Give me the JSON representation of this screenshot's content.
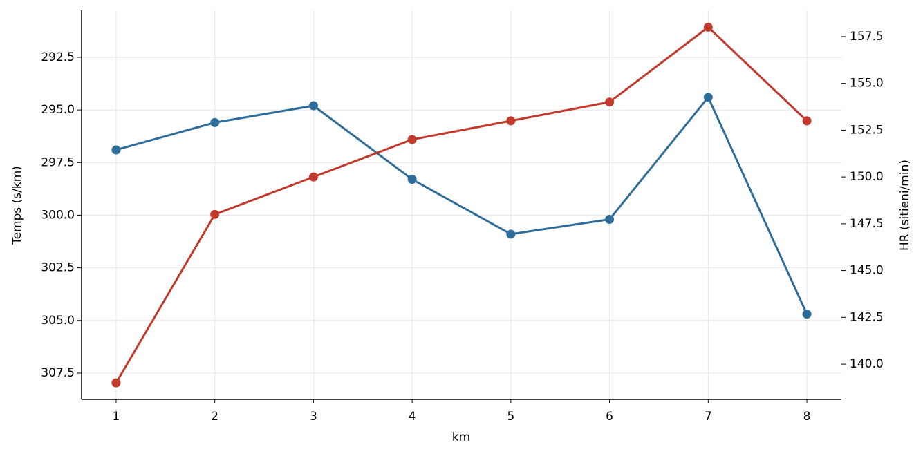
{
  "chart_data": {
    "type": "line",
    "x_label": "km",
    "y_label": "Temps (s/km)",
    "y2_label": "HR (sitieni/min)",
    "x": [
      1,
      2,
      3,
      4,
      5,
      6,
      7,
      8
    ],
    "xlim": [
      0.65,
      8.35
    ],
    "xticks": [
      1,
      2,
      3,
      4,
      5,
      6,
      7,
      8
    ],
    "ylim": [
      308.75,
      290.27
    ],
    "y_inverted": true,
    "yticks": [
      292.5,
      {
        "value": 295,
        "label": "295.0"
      },
      297.5,
      {
        "value": 300,
        "label": "300.0"
      },
      302.5,
      {
        "value": 305,
        "label": "305.0"
      },
      307.5
    ],
    "y2lim": [
      138.12,
      158.9
    ],
    "y2ticks": [
      {
        "value": 140,
        "label": "140.0"
      },
      142.5,
      {
        "value": 145,
        "label": "145.0"
      },
      147.5,
      {
        "value": 150,
        "label": "150.0"
      },
      152.5,
      {
        "value": 155,
        "label": "155.0"
      },
      157.5
    ],
    "grid": true,
    "series": [
      {
        "name": "Temps",
        "color": "#2e6d99",
        "values": [
          296.9,
          295.6,
          294.8,
          298.3,
          300.9,
          300.2,
          294.4,
          304.7
        ]
      },
      {
        "name": "HR",
        "color": "#c0392b",
        "axis": "y2",
        "values": [
          139,
          148,
          150,
          152,
          153,
          154,
          158,
          153
        ]
      }
    ]
  }
}
